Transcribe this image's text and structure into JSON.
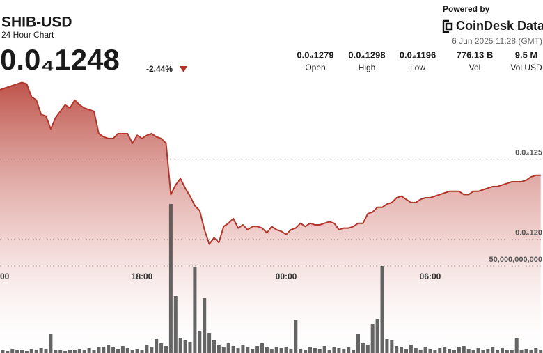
{
  "header": {
    "symbol": "SHIB-USD",
    "subtitle": "24 Hour Chart",
    "price": "0.0₄1248",
    "change": "-2.44%",
    "powered_by": "Powered by",
    "brand": "CoinDesk Data",
    "timestamp": "6 Jun 2025 11:28 (GMT)"
  },
  "stats": [
    {
      "value": "0.0₄1279",
      "label": "Open"
    },
    {
      "value": "0.0₄1298",
      "label": "High"
    },
    {
      "value": "0.0₄1196",
      "label": "Low"
    },
    {
      "value": "776.13 B",
      "label": "Vol"
    },
    {
      "value": "9.5 M",
      "label": "Vol USD"
    }
  ],
  "chart_data": {
    "type": "area",
    "categories": [
      "00",
      null,
      null,
      null,
      null,
      null,
      null,
      null,
      null,
      null,
      null,
      null,
      null,
      null,
      null,
      null,
      null,
      null,
      null,
      null,
      null,
      null,
      null,
      null,
      null,
      null,
      null,
      null,
      null,
      null,
      "18:00",
      null,
      null,
      null,
      null,
      null,
      null,
      null,
      null,
      null,
      null,
      null,
      null,
      null,
      null,
      null,
      null,
      null,
      null,
      null,
      null,
      null,
      null,
      null,
      null,
      null,
      null,
      null,
      null,
      null,
      "00:00",
      null,
      null,
      null,
      null,
      null,
      null,
      null,
      null,
      null,
      null,
      null,
      null,
      null,
      null,
      null,
      null,
      null,
      null,
      null,
      null,
      null,
      null,
      null,
      null,
      null,
      null,
      null,
      null,
      null,
      "06:00",
      null,
      null,
      null,
      null,
      null,
      null,
      null,
      null,
      null,
      null,
      null,
      null,
      null,
      null,
      null,
      null,
      null,
      null,
      null,
      null,
      null,
      null,
      null
    ],
    "series": [
      {
        "type": "area",
        "color": "#b3362b",
        "values": [
          1.293e-05,
          1.294e-05,
          1.295e-05,
          1.296e-05,
          1.297e-05,
          1.298e-05,
          1.297e-05,
          1.289e-05,
          1.287e-05,
          1.278e-05,
          1.277e-05,
          1.269e-05,
          1.276e-05,
          1.28e-05,
          1.284e-05,
          1.282e-05,
          1.287e-05,
          1.284e-05,
          1.282e-05,
          1.281e-05,
          1.28e-05,
          1.266e-05,
          1.264e-05,
          1.263e-05,
          1.263e-05,
          1.266e-05,
          1.266e-05,
          1.266e-05,
          1.26e-05,
          1.265e-05,
          1.263e-05,
          1.265e-05,
          1.266e-05,
          1.264e-05,
          1.263e-05,
          1.26e-05,
          1.228e-05,
          1.234e-05,
          1.238e-05,
          1.232e-05,
          1.227e-05,
          1.221e-05,
          1.218e-05,
          1.206e-05,
          1.197e-05,
          1.201e-05,
          1.198e-05,
          1.208e-05,
          1.21e-05,
          1.213e-05,
          1.207e-05,
          1.209e-05,
          1.206e-05,
          1.208e-05,
          1.208e-05,
          1.207e-05,
          1.204e-05,
          1.208e-05,
          1.206e-05,
          1.205e-05,
          1.203e-05,
          1.206e-05,
          1.207e-05,
          1.21e-05,
          1.208e-05,
          1.21e-05,
          1.209e-05,
          1.209e-05,
          1.21e-05,
          1.211e-05,
          1.21e-05,
          1.206e-05,
          1.207e-05,
          1.207e-05,
          1.208e-05,
          1.21e-05,
          1.21e-05,
          1.216e-05,
          1.217e-05,
          1.22e-05,
          1.22e-05,
          1.222e-05,
          1.223e-05,
          1.226e-05,
          1.227e-05,
          1.225e-05,
          1.223e-05,
          1.223e-05,
          1.225e-05,
          1.226e-05,
          1.226e-05,
          1.227e-05,
          1.228e-05,
          1.229e-05,
          1.23e-05,
          1.23e-05,
          1.23e-05,
          1.228e-05,
          1.228e-05,
          1.23e-05,
          1.23e-05,
          1.231e-05,
          1.232e-05,
          1.233e-05,
          1.233e-05,
          1.234e-05,
          1.235e-05,
          1.236e-05,
          1.236e-05,
          1.236e-05,
          1.237e-05,
          1.239e-05,
          1.24e-05,
          1.24e-05
        ]
      },
      {
        "type": "bar",
        "axis": "y2",
        "color": "#4a4a4a",
        "values": [
          1200000000,
          1600000000,
          1200000000,
          2400000000,
          2000000000,
          1600000000,
          1200000000,
          2400000000,
          2000000000,
          2800000000,
          2400000000,
          10800000000,
          2000000000,
          1600000000,
          1200000000,
          2000000000,
          1600000000,
          2400000000,
          2000000000,
          2800000000,
          2000000000,
          3200000000,
          3600000000,
          4800000000,
          3200000000,
          2400000000,
          4000000000,
          2800000000,
          2000000000,
          2400000000,
          2000000000,
          4800000000,
          3200000000,
          8000000000,
          5600000000,
          4000000000,
          85600000000,
          32800000000,
          8800000000,
          7200000000,
          6400000000,
          49600000000,
          12800000000,
          31600000000,
          11600000000,
          7200000000,
          4800000000,
          3200000000,
          5600000000,
          4000000000,
          2800000000,
          4800000000,
          3600000000,
          2400000000,
          4000000000,
          5600000000,
          3200000000,
          2400000000,
          3600000000,
          2800000000,
          3200000000,
          2400000000,
          18800000000,
          2400000000,
          2000000000,
          3200000000,
          2800000000,
          2400000000,
          4000000000,
          2000000000,
          3200000000,
          2800000000,
          2400000000,
          3600000000,
          2000000000,
          10800000000,
          5600000000,
          4800000000,
          16800000000,
          19600000000,
          50000000000,
          8000000000,
          7200000000,
          4000000000,
          3200000000,
          2400000000,
          4800000000,
          2800000000,
          2000000000,
          3200000000,
          2400000000,
          1600000000,
          2800000000,
          3600000000,
          2400000000,
          2000000000,
          3200000000,
          4000000000,
          2400000000,
          1600000000,
          2800000000,
          2000000000,
          2400000000,
          3200000000,
          2000000000,
          2800000000,
          1600000000,
          2000000000,
          8400000000,
          2000000000,
          2400000000,
          1600000000,
          2800000000,
          2000000000
        ]
      }
    ],
    "ylim": [
      1.129e-05,
      1.306e-05
    ],
    "yticks": [
      {
        "value": 1.25e-05,
        "label": "0.0₄125"
      },
      {
        "value": 1.2e-05,
        "label": "0.0₄120"
      }
    ],
    "y2lim": [
      0,
      162800000000
    ],
    "y2ticks": [
      {
        "value": 50000000000,
        "label": "50,000,000,000"
      }
    ],
    "grid": true
  }
}
